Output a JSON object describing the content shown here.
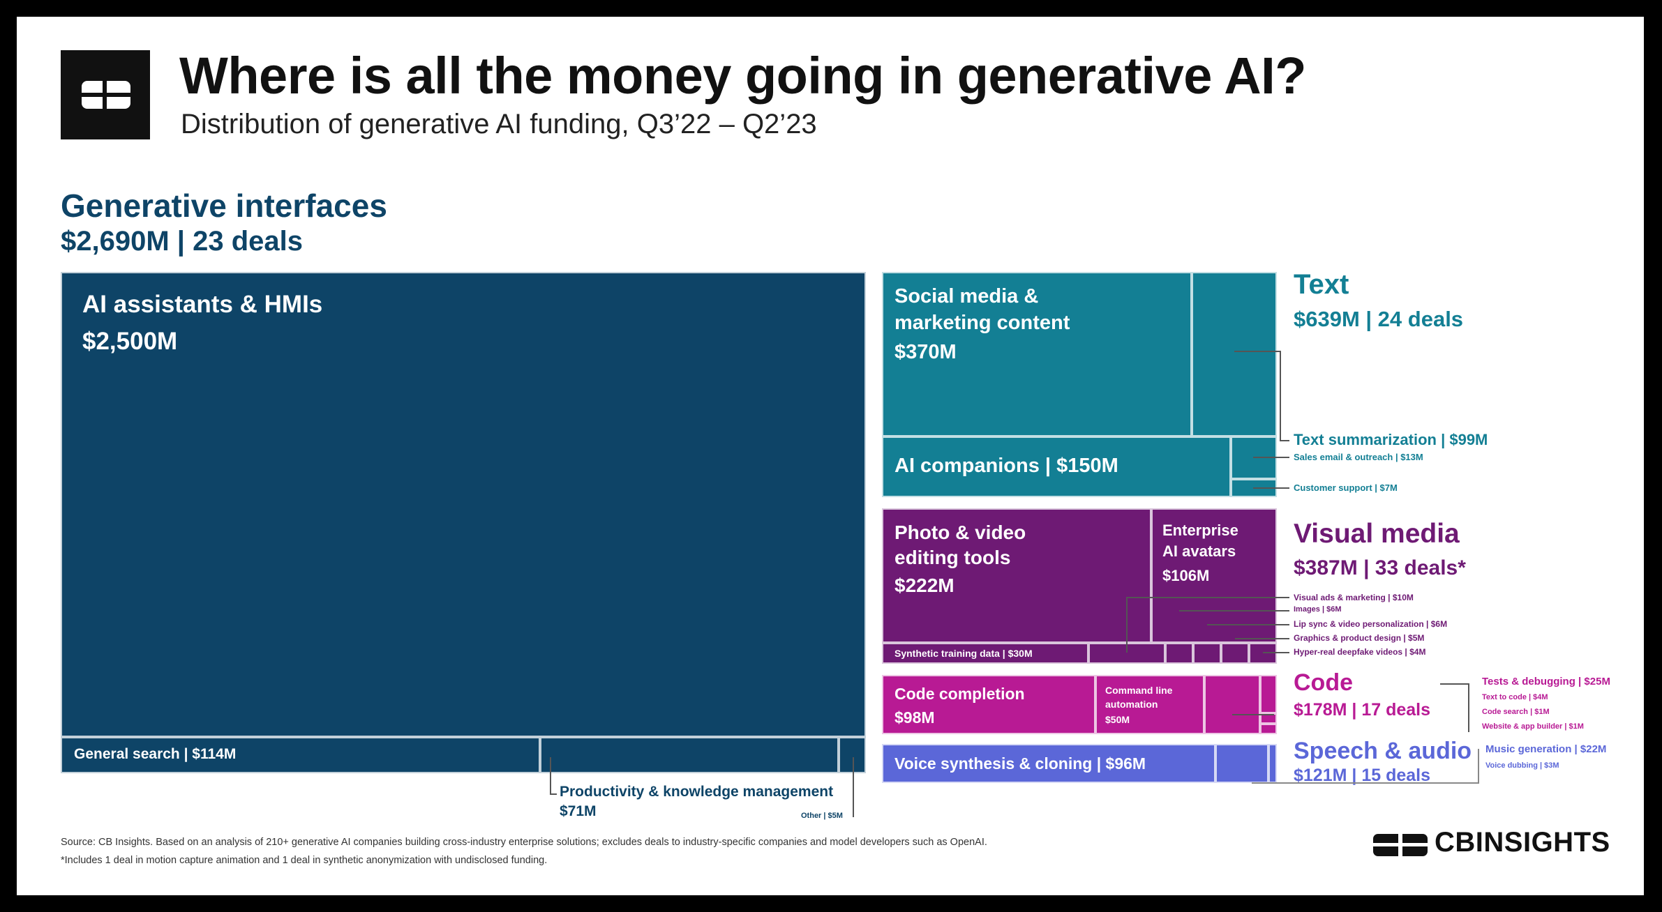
{
  "header": {
    "title": "Where is all the money going in generative AI?",
    "subtitle": "Distribution of generative AI funding, Q3’22 – Q2’23"
  },
  "colors": {
    "interfaces": "#0e4467",
    "text": "#137f94",
    "visual": "#6e1a74",
    "code": "#b81a94",
    "speech": "#5b67d8"
  },
  "chart_data": {
    "type": "treemap",
    "unit": "$M",
    "groups": [
      {
        "name": "Generative interfaces",
        "summary": "$2,690M | 23 deals",
        "total": 2690,
        "deals": 23,
        "items": [
          {
            "name": "AI assistants & HMIs",
            "value_label": "$2,500M",
            "value": 2500
          },
          {
            "name": "General search",
            "value_label": "$114M",
            "value": 114
          },
          {
            "name": "Productivity & knowledge management",
            "value_label": "$71M",
            "value": 71
          },
          {
            "name": "Other",
            "value_label": "$5M",
            "value": 5
          }
        ]
      },
      {
        "name": "Text",
        "summary": "$639M | 24 deals",
        "total": 639,
        "deals": 24,
        "items": [
          {
            "name": "Social media & marketing content",
            "value_label": "$370M",
            "value": 370
          },
          {
            "name": "Text summarization",
            "value_label": "$99M",
            "value": 99
          },
          {
            "name": "AI companions",
            "value_label": "$150M",
            "value": 150
          },
          {
            "name": "Sales email & outreach",
            "value_label": "$13M",
            "value": 13
          },
          {
            "name": "Customer support",
            "value_label": "$7M",
            "value": 7
          }
        ]
      },
      {
        "name": "Visual media",
        "summary": "$387M | 33 deals*",
        "total": 387,
        "deals": 33,
        "items": [
          {
            "name": "Photo & video editing tools",
            "value_label": "$222M",
            "value": 222
          },
          {
            "name": "Enterprise AI avatars",
            "value_label": "$106M",
            "value": 106
          },
          {
            "name": "Synthetic training data",
            "value_label": "$30M",
            "value": 30
          },
          {
            "name": "Visual ads & marketing",
            "value_label": "$10M",
            "value": 10
          },
          {
            "name": "Images",
            "value_label": "$6M",
            "value": 6
          },
          {
            "name": "Lip sync & video personalization",
            "value_label": "$6M",
            "value": 6
          },
          {
            "name": "Graphics & product design",
            "value_label": "$5M",
            "value": 5
          },
          {
            "name": "Hyper-real deepfake videos",
            "value_label": "$4M",
            "value": 4
          }
        ]
      },
      {
        "name": "Code",
        "summary": "$178M | 17 deals",
        "total": 178,
        "deals": 17,
        "items": [
          {
            "name": "Code completion",
            "value_label": "$98M",
            "value": 98
          },
          {
            "name": "Command line automation",
            "value_label": "$50M",
            "value": 50
          },
          {
            "name": "Tests & debugging",
            "value_label": "$25M",
            "value": 25
          },
          {
            "name": "Text to code",
            "value_label": "$4M",
            "value": 4
          },
          {
            "name": "Code search",
            "value_label": "$1M",
            "value": 1
          },
          {
            "name": "Website & app builder",
            "value_label": "$1M",
            "value": 1
          }
        ]
      },
      {
        "name": "Speech & audio",
        "summary": "$121M | 15 deals",
        "total": 121,
        "deals": 15,
        "items": [
          {
            "name": "Voice synthesis & cloning",
            "value_label": "$96M",
            "value": 96
          },
          {
            "name": "Music generation",
            "value_label": "$22M",
            "value": 22
          },
          {
            "name": "Voice dubbing",
            "value_label": "$3M",
            "value": 3
          }
        ]
      }
    ]
  },
  "labels": {
    "ai_companions": "AI companions | $150M",
    "general_search": "General search | $114M",
    "other": "Other | $5M",
    "synthetic": "Synthetic training data | $30M",
    "text_summarization": "Text summarization | $99M",
    "sales_email": "Sales email & outreach | $13M",
    "customer_support": "Customer support | $7M",
    "visual_ads": "Visual ads & marketing | $10M",
    "images": "Images | $6M",
    "lip_sync": "Lip sync & video personalization | $6M",
    "graphics": "Graphics & product design | $5M",
    "deepfake": "Hyper-real deepfake videos | $4M",
    "tests": "Tests & debugging | $25M",
    "text_to_code": "Text to code | $4M",
    "code_search": "Code search | $1M",
    "website": "Website & app builder | $1M",
    "voice_synthesis": "Voice synthesis & cloning | $96M",
    "music": "Music generation | $22M",
    "voice_dubbing": "Voice dubbing | $3M",
    "social_line1": "Social media &",
    "social_line2": "marketing content",
    "photo_line1": "Photo & video",
    "photo_line2": "editing tools",
    "avatar_line1": "Enterprise",
    "avatar_line2": "AI avatars",
    "cmd_line1": "Command line",
    "cmd_line2": "automation"
  },
  "footer": {
    "source": "Source: CB Insights. Based on an analysis of 210+ generative AI companies building cross-industry enterprise solutions; excludes deals to industry-specific companies and model developers such as OpenAI.",
    "note": "*Includes 1 deal in motion capture animation and 1 deal in synthetic anonymization with undisclosed funding.",
    "brand": "CBINSIGHTS"
  }
}
